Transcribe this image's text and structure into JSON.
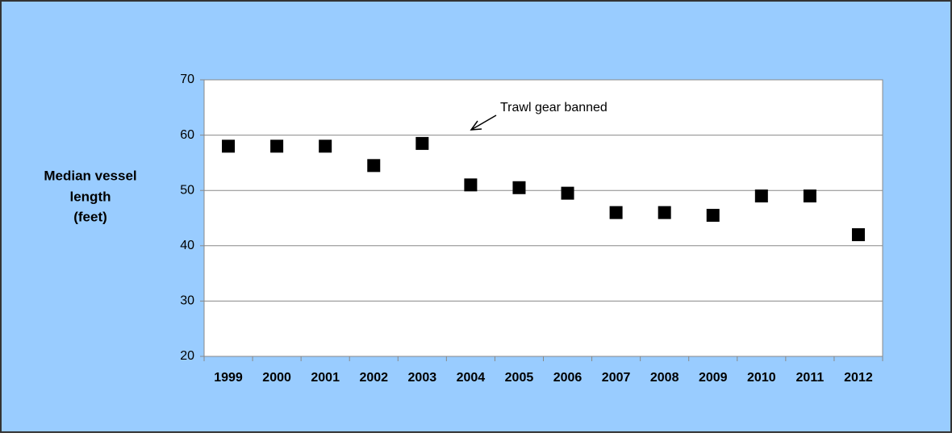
{
  "chart_data": {
    "type": "scatter",
    "ylabel": [
      "Median vessel",
      "length",
      "(feet)"
    ],
    "annotation": "Trawl gear banned",
    "categories": [
      "1999",
      "2000",
      "2001",
      "2002",
      "2003",
      "2004",
      "2005",
      "2006",
      "2007",
      "2008",
      "2009",
      "2010",
      "2011",
      "2012"
    ],
    "values": [
      58,
      58,
      58,
      54.5,
      58.5,
      51,
      50.5,
      49.5,
      46,
      46,
      45.5,
      49,
      49,
      42
    ],
    "color": "#000000",
    "ylim": [
      20,
      70
    ],
    "yticks": [
      20,
      30,
      40,
      50,
      60,
      70
    ],
    "grid": true
  }
}
